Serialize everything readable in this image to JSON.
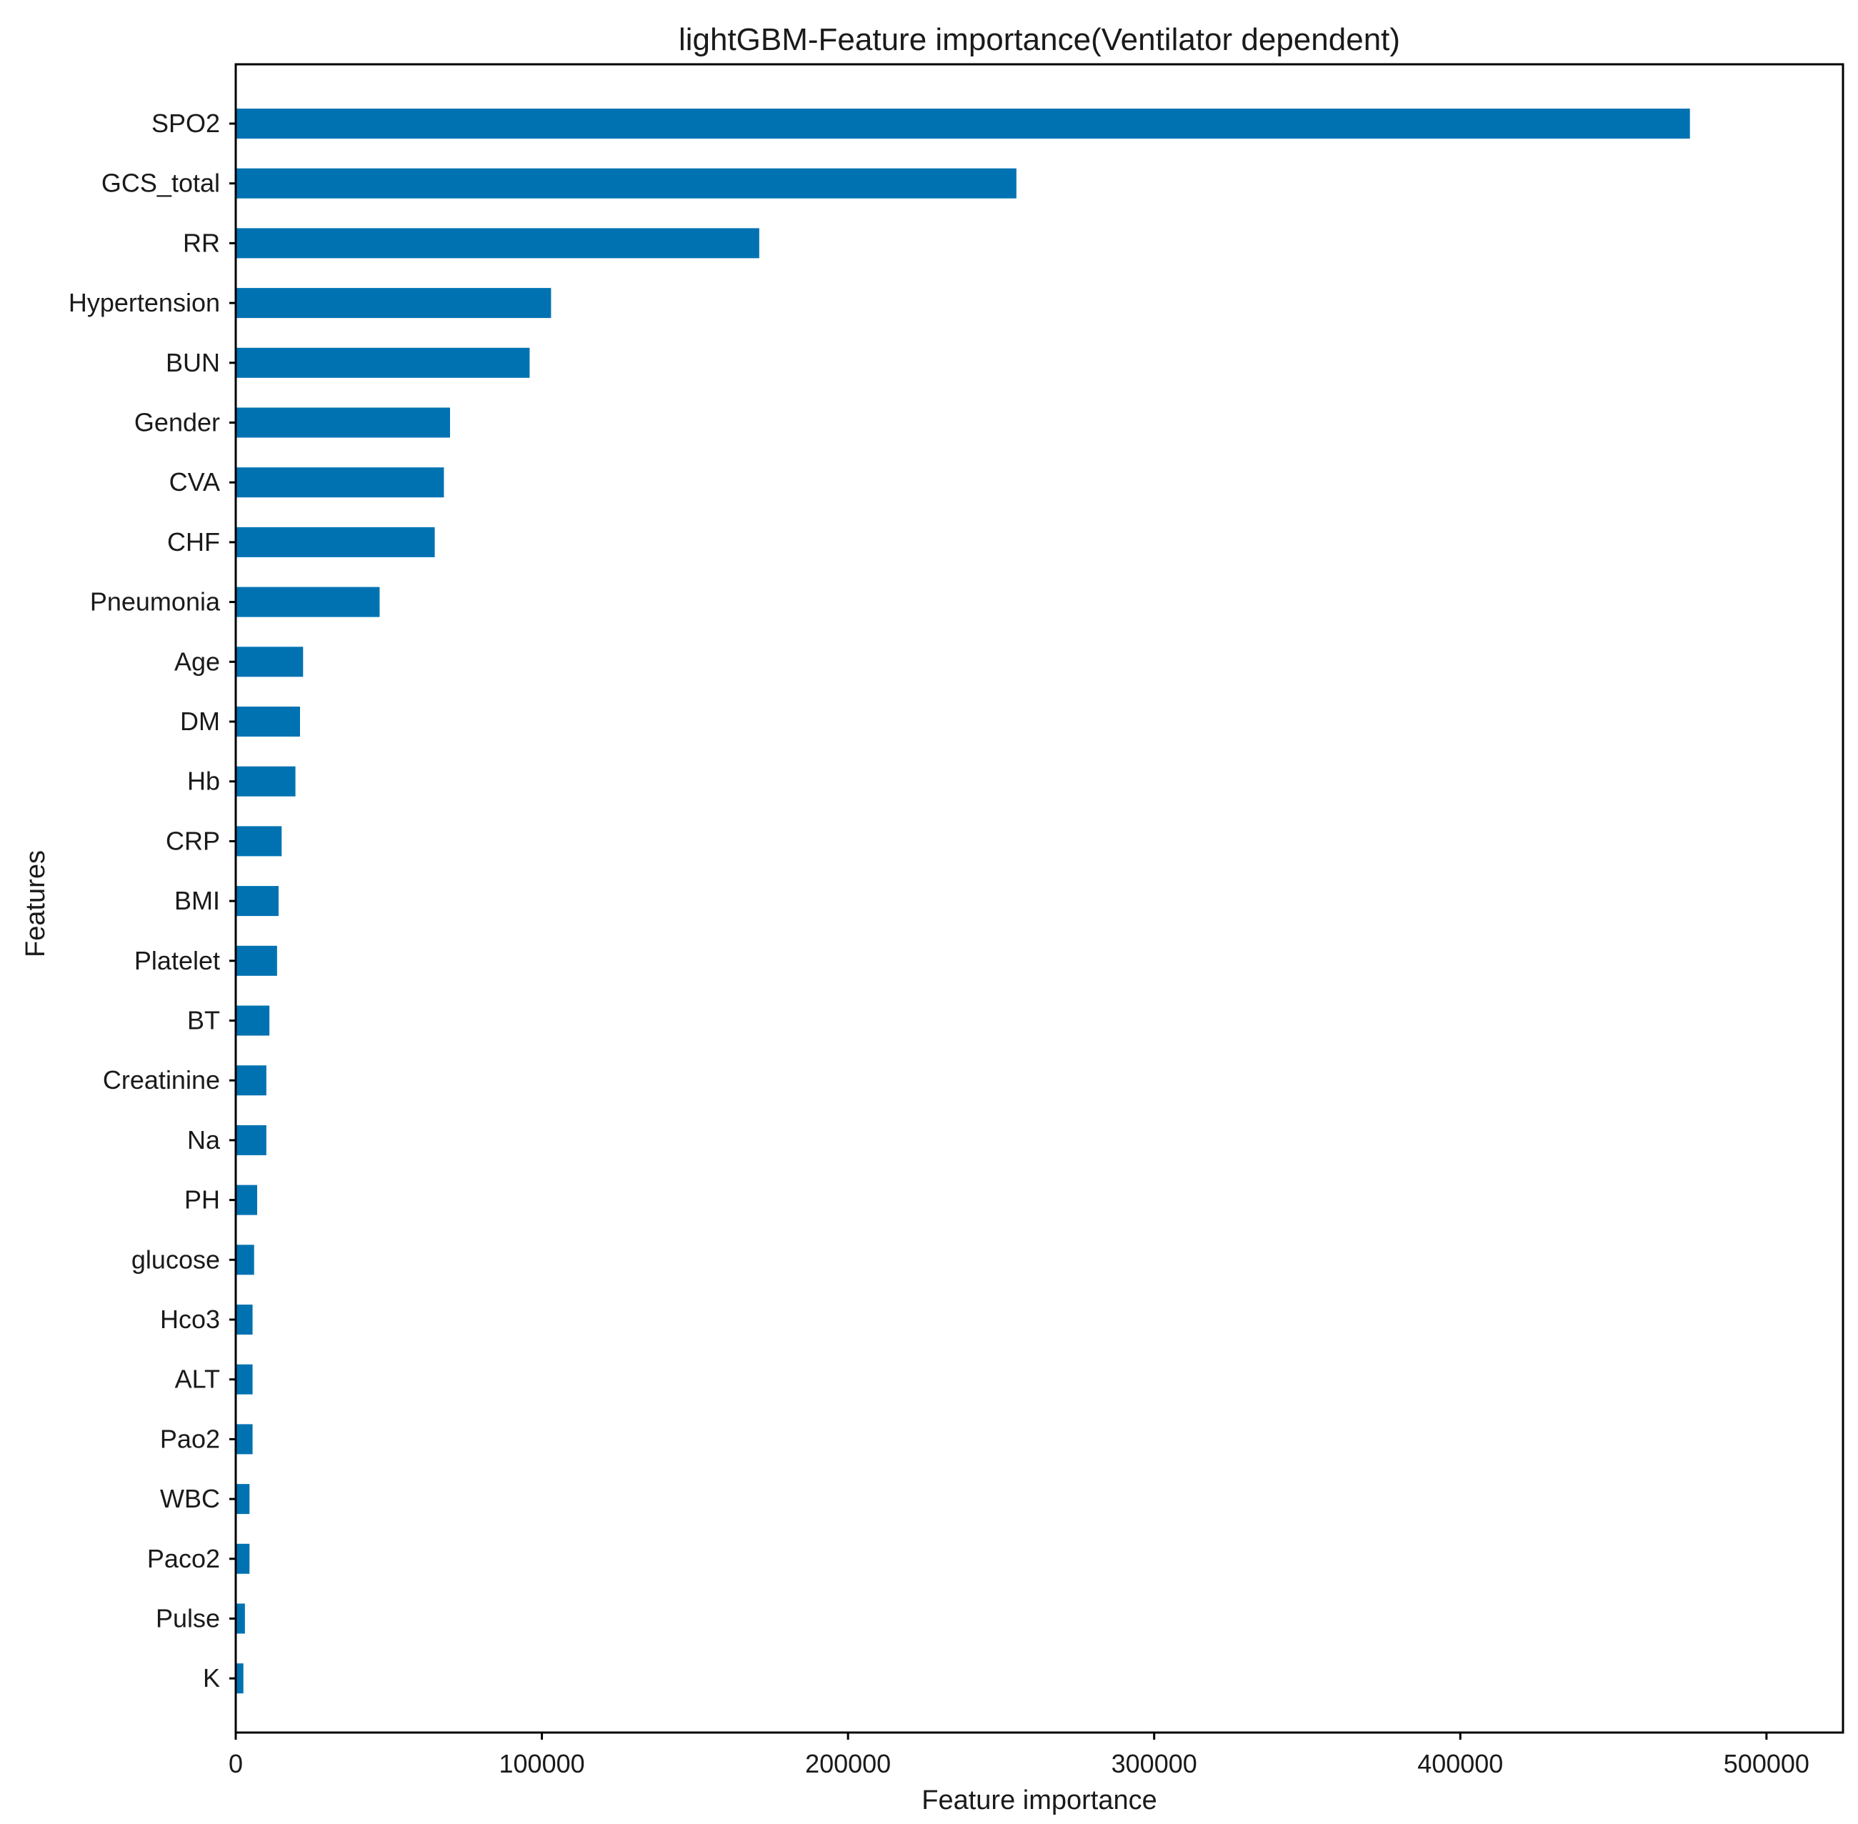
{
  "chart_data": {
    "type": "bar",
    "orientation": "horizontal",
    "title": "lightGBM-Feature importance(Ventilator dependent)",
    "xlabel": "Feature importance",
    "ylabel": "Features",
    "xlim": [
      0,
      525000
    ],
    "xticks": [
      0,
      100000,
      200000,
      300000,
      400000,
      500000
    ],
    "xtick_labels": [
      "0",
      "100000",
      "200000",
      "300000",
      "400000",
      "500000"
    ],
    "grid": false,
    "bar_color": "#0072b2",
    "categories": [
      "SPO2",
      "GCS_total",
      "RR",
      "Hypertension",
      "BUN",
      "Gender",
      "CVA",
      "CHF",
      "Pneumonia",
      "Age",
      "DM",
      "Hb",
      "CRP",
      "BMI",
      "Platelet",
      "BT",
      "Creatinine",
      "Na",
      "PH",
      "glucose",
      "Hco3",
      "ALT",
      "Pao2",
      "WBC",
      "Paco2",
      "Pulse",
      "K"
    ],
    "values": [
      475000,
      255000,
      171000,
      103000,
      96000,
      70000,
      68000,
      65000,
      47000,
      22000,
      21000,
      19500,
      15000,
      14000,
      13500,
      11000,
      10000,
      10000,
      7000,
      6000,
      5500,
      5500,
      5500,
      4500,
      4500,
      3000,
      2500
    ]
  }
}
